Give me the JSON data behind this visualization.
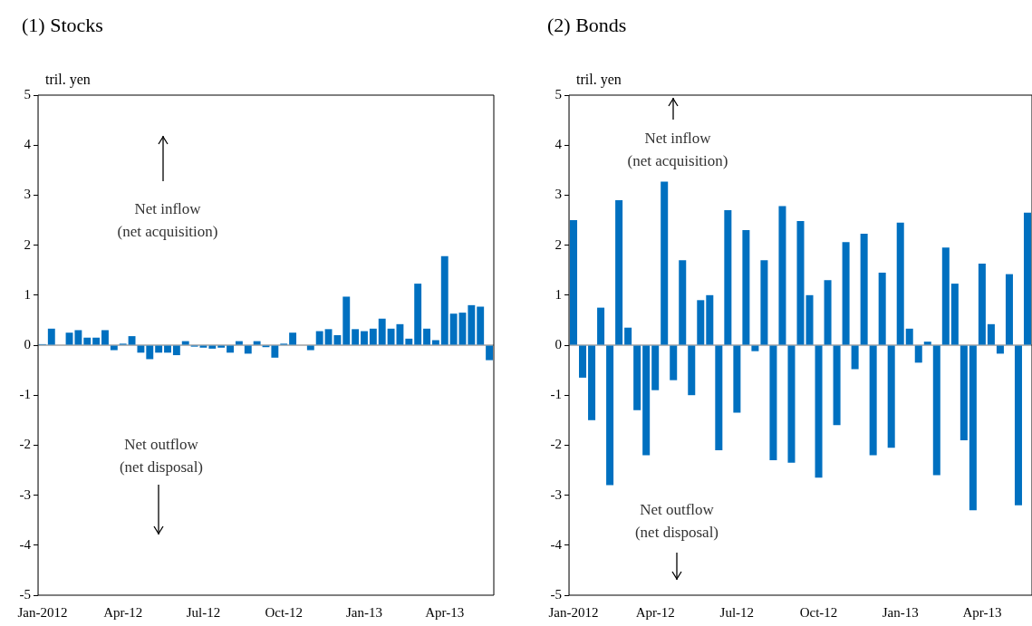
{
  "chart_data": [
    {
      "type": "bar",
      "title": "(1) Stocks",
      "ylabel": "tril. yen",
      "color": "#0070c0",
      "ylim": [
        -5,
        5
      ],
      "yticks": [
        -5,
        -4,
        -3,
        -2,
        -1,
        0,
        1,
        2,
        3,
        4,
        5
      ],
      "categories": [
        "Jan-2012",
        null,
        null,
        null,
        null,
        null,
        null,
        null,
        null,
        "Apr-12",
        null,
        null,
        null,
        null,
        null,
        null,
        null,
        null,
        "Jul-12",
        null,
        null,
        null,
        null,
        null,
        null,
        null,
        null,
        "Oct-12",
        null,
        null,
        null,
        null,
        null,
        null,
        null,
        null,
        "Jan-13",
        null,
        null,
        null,
        null,
        null,
        null,
        null,
        null,
        "Apr-13",
        null,
        null,
        null,
        null,
        null
      ],
      "values": [
        0.02,
        0.33,
        0,
        0.25,
        0.3,
        0.15,
        0.15,
        0.3,
        -0.1,
        0.03,
        0.18,
        -0.15,
        -0.28,
        -0.15,
        -0.15,
        -0.2,
        0.08,
        -0.03,
        -0.05,
        -0.07,
        -0.05,
        -0.15,
        0.08,
        -0.17,
        0.08,
        -0.04,
        -0.25,
        0.03,
        0.25,
        0,
        -0.1,
        0.28,
        0.32,
        0.2,
        0.97,
        0.32,
        0.28,
        0.33,
        0.53,
        0.33,
        0.42,
        0.13,
        1.23,
        0.33,
        0.1,
        1.78,
        0.63,
        0.65,
        0.8,
        0.77,
        -0.3
      ],
      "ref_lines": [
        {
          "axis": "y",
          "value": 0,
          "color": "#a0a0a0"
        }
      ],
      "annotations": [
        "Net inflow\n(net acquisition)",
        "Net outflow\n(net disposal)"
      ]
    },
    {
      "type": "bar",
      "title": "(2) Bonds",
      "ylabel": "tril. yen",
      "color": "#0070c0",
      "ylim": [
        -5,
        5
      ],
      "yticks": [
        -5,
        -4,
        -3,
        -2,
        -1,
        0,
        1,
        2,
        3,
        4,
        5
      ],
      "categories": [
        "Jan-2012",
        null,
        null,
        null,
        null,
        null,
        null,
        null,
        null,
        "Apr-12",
        null,
        null,
        null,
        null,
        null,
        null,
        null,
        null,
        "Jul-12",
        null,
        null,
        null,
        null,
        null,
        null,
        null,
        null,
        "Oct-12",
        null,
        null,
        null,
        null,
        null,
        null,
        null,
        null,
        "Jan-13",
        null,
        null,
        null,
        null,
        null,
        null,
        null,
        null,
        "Apr-13",
        null,
        null,
        null,
        null,
        null
      ],
      "values": [
        2.5,
        -0.65,
        -1.5,
        0.75,
        -2.8,
        2.9,
        0.35,
        -1.3,
        -2.2,
        -0.9,
        3.27,
        -0.7,
        1.7,
        -1.0,
        0.9,
        1.0,
        -2.1,
        2.7,
        -1.35,
        2.3,
        -0.12,
        1.7,
        -2.3,
        2.78,
        -2.35,
        2.48,
        1.0,
        -2.65,
        1.3,
        -1.6,
        2.06,
        -0.48,
        2.23,
        -2.2,
        1.45,
        -2.05,
        2.45,
        0.33,
        -0.35,
        0.07,
        -2.6,
        1.95,
        1.23,
        -1.9,
        -3.3,
        1.63,
        0.42,
        -0.17,
        1.42,
        -3.2,
        2.65
      ],
      "ref_lines": [
        {
          "axis": "y",
          "value": 0,
          "color": "#a0a0a0"
        }
      ],
      "annotations": [
        "Net inflow\n(net acquisition)",
        "Net outflow\n(net disposal)"
      ]
    }
  ]
}
